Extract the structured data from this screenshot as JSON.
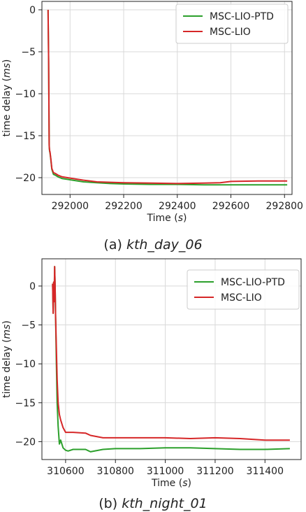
{
  "chart_data": [
    {
      "type": "line",
      "caption_prefix": "(a) ",
      "caption_name": "kth_day_06",
      "xlabel": "Time (",
      "xlabel_unit": "s",
      "xlabel_suffix": ")",
      "ylabel": "time delay (",
      "ylabel_unit": "ms",
      "ylabel_suffix": ")",
      "xlim": [
        291895,
        292828
      ],
      "ylim": [
        -22,
        1
      ],
      "xticks": [
        292000,
        292200,
        292400,
        292600,
        292800
      ],
      "yticks": [
        0,
        -5,
        -10,
        -15,
        -20
      ],
      "grid": true,
      "legend_position": "top-right",
      "series": [
        {
          "name": "MSC-LIO-PTD",
          "color": "#2ca02c",
          "x": [
            291918,
            291920,
            291921,
            291922,
            291923,
            291924,
            291925,
            291928,
            291932,
            291938,
            291945,
            291955,
            291970,
            291990,
            292010,
            292050,
            292100,
            292150,
            292200,
            292300,
            292400,
            292500,
            292600,
            292700,
            292810
          ],
          "y": [
            0,
            -6,
            -11,
            -16,
            -16.6,
            -16.9,
            -17.0,
            -17.8,
            -19.0,
            -19.6,
            -19.7,
            -19.9,
            -20.1,
            -20.2,
            -20.3,
            -20.5,
            -20.6,
            -20.7,
            -20.75,
            -20.8,
            -20.8,
            -20.85,
            -20.85,
            -20.85,
            -20.85
          ]
        },
        {
          "name": "MSC-LIO",
          "color": "#d62728",
          "x": [
            291918,
            291920,
            291921,
            291922,
            291923,
            291924,
            291925,
            291928,
            291932,
            291938,
            291945,
            291955,
            291970,
            291990,
            292010,
            292050,
            292100,
            292150,
            292200,
            292300,
            292400,
            292500,
            292560,
            292600,
            292700,
            292810
          ],
          "y": [
            0,
            -6,
            -11,
            -16.2,
            -16.5,
            -16.8,
            -16.9,
            -17.7,
            -18.9,
            -19.4,
            -19.5,
            -19.7,
            -19.9,
            -20.0,
            -20.1,
            -20.3,
            -20.5,
            -20.55,
            -20.6,
            -20.65,
            -20.7,
            -20.65,
            -20.6,
            -20.45,
            -20.4,
            -20.4
          ]
        }
      ]
    },
    {
      "type": "line",
      "caption_prefix": "(b) ",
      "caption_name": "kth_night_01",
      "xlabel": "Time (",
      "xlabel_unit": "s",
      "xlabel_suffix": ")",
      "ylabel": "time delay (",
      "ylabel_unit": "ms",
      "ylabel_suffix": ")",
      "xlim": [
        310505,
        311545
      ],
      "ylim": [
        -22.3,
        3.5
      ],
      "xticks": [
        310600,
        310800,
        311000,
        311200,
        311400
      ],
      "yticks": [
        0,
        -5,
        -10,
        -15,
        -20
      ],
      "grid": true,
      "legend_position": "top-right",
      "series": [
        {
          "name": "MSC-LIO-PTD",
          "color": "#2ca02c",
          "x": [
            310548,
            310550,
            310552,
            310554,
            310556,
            310558,
            310560,
            310563,
            310566,
            310570,
            310575,
            310580,
            310590,
            310600,
            310610,
            310630,
            310680,
            310700,
            310750,
            310800,
            310900,
            311000,
            311100,
            311200,
            311300,
            311400,
            311500
          ],
          "y": [
            0.3,
            -3.5,
            0.5,
            -2,
            2.5,
            0,
            -4,
            -10,
            -15,
            -18,
            -20.3,
            -19.8,
            -20.8,
            -21.1,
            -21.2,
            -21.0,
            -21.0,
            -21.3,
            -21.0,
            -20.9,
            -20.9,
            -20.8,
            -20.8,
            -20.9,
            -21.0,
            -21.0,
            -20.9
          ]
        },
        {
          "name": "MSC-LIO",
          "color": "#d62728",
          "x": [
            310548,
            310550,
            310552,
            310554,
            310556,
            310558,
            310560,
            310563,
            310566,
            310570,
            310575,
            310580,
            310590,
            310600,
            310610,
            310630,
            310680,
            310700,
            310750,
            310800,
            310900,
            311000,
            311100,
            311200,
            311300,
            311400,
            311500
          ],
          "y": [
            0.3,
            -3.5,
            0.5,
            -2,
            2.5,
            0,
            -4,
            -8,
            -12,
            -15,
            -16.5,
            -17.2,
            -18.2,
            -18.8,
            -18.8,
            -18.8,
            -18.9,
            -19.2,
            -19.5,
            -19.5,
            -19.5,
            -19.5,
            -19.6,
            -19.5,
            -19.6,
            -19.8,
            -19.8
          ]
        }
      ]
    }
  ]
}
